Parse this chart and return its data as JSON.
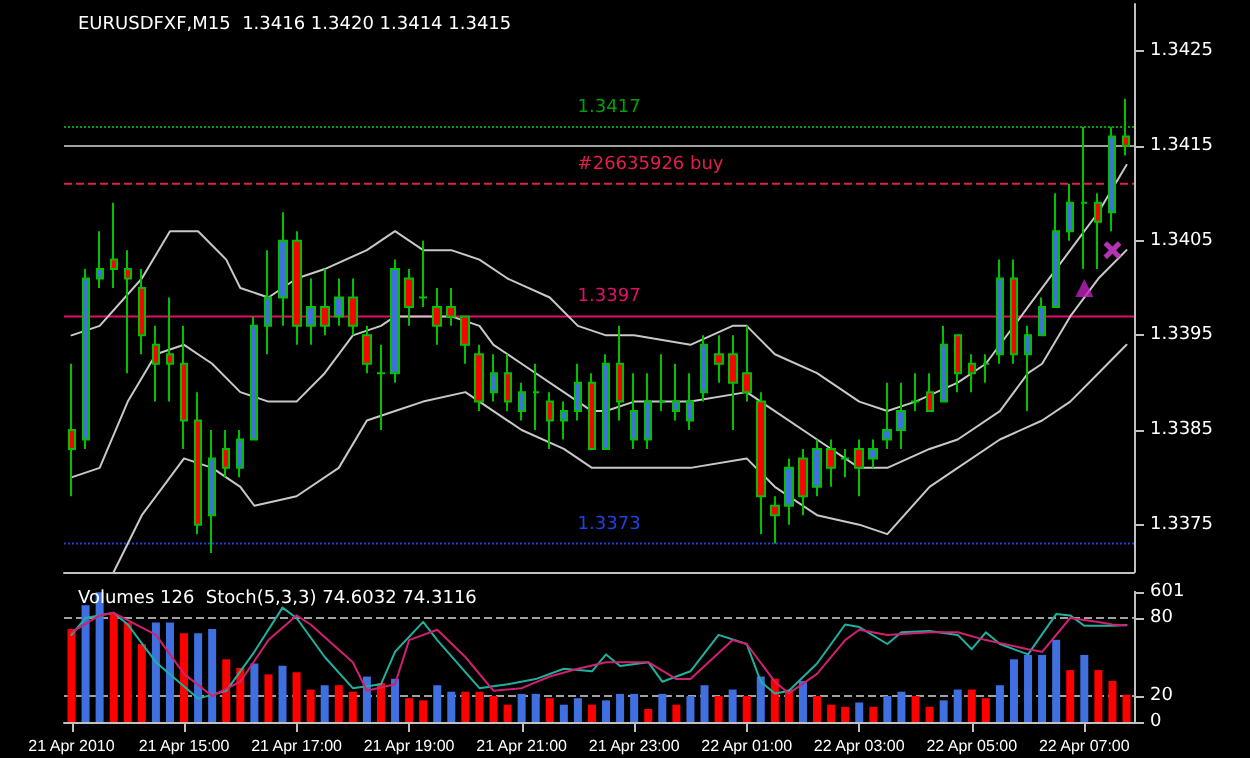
{
  "chart_data": [
    {
      "type": "candlestick",
      "title": "EURUSDFXF,M15  1.3416 1.3420 1.3414 1.3415",
      "color": "#00c000",
      "x": [
        "2010-04-21T13:00",
        "2010-04-21T13:15",
        "2010-04-21T13:30",
        "2010-04-21T13:45",
        "2010-04-21T14:00",
        "2010-04-21T14:15",
        "2010-04-21T14:30",
        "2010-04-21T14:45",
        "2010-04-21T15:00",
        "2010-04-21T15:15",
        "2010-04-21T15:30",
        "2010-04-21T15:45",
        "2010-04-21T16:00",
        "2010-04-21T16:15",
        "2010-04-21T16:30",
        "2010-04-21T16:45",
        "2010-04-21T17:00",
        "2010-04-21T17:15",
        "2010-04-21T17:30",
        "2010-04-21T17:45",
        "2010-04-21T18:00",
        "2010-04-21T18:15",
        "2010-04-21T18:30",
        "2010-04-21T18:45",
        "2010-04-21T19:00",
        "2010-04-21T19:15",
        "2010-04-21T19:30",
        "2010-04-21T19:45",
        "2010-04-21T20:00",
        "2010-04-21T20:15",
        "2010-04-21T20:30",
        "2010-04-21T20:45",
        "2010-04-21T21:00",
        "2010-04-21T21:15",
        "2010-04-21T21:30",
        "2010-04-21T21:45",
        "2010-04-21T22:00",
        "2010-04-21T22:15",
        "2010-04-21T22:30",
        "2010-04-21T22:45",
        "2010-04-21T23:00",
        "2010-04-21T23:15",
        "2010-04-21T23:30",
        "2010-04-21T23:45",
        "2010-04-22T00:00",
        "2010-04-22T00:15",
        "2010-04-22T00:30",
        "2010-04-22T00:45",
        "2010-04-22T01:00",
        "2010-04-22T01:15",
        "2010-04-22T01:30",
        "2010-04-22T01:45",
        "2010-04-22T02:00",
        "2010-04-22T02:15",
        "2010-04-22T02:30",
        "2010-04-22T02:45",
        "2010-04-22T03:00",
        "2010-04-22T03:15",
        "2010-04-22T03:30",
        "2010-04-22T03:45",
        "2010-04-22T04:00",
        "2010-04-22T04:15",
        "2010-04-22T04:30",
        "2010-04-22T04:45",
        "2010-04-22T05:00",
        "2010-04-22T05:15",
        "2010-04-22T05:30",
        "2010-04-22T05:45",
        "2010-04-22T06:00",
        "2010-04-22T06:15",
        "2010-04-22T06:30",
        "2010-04-22T06:45",
        "2010-04-22T07:00",
        "2010-04-22T07:15",
        "2010-04-22T07:30",
        "2010-04-22T07:45"
      ],
      "ohlc": [
        [
          1.3385,
          1.3392,
          1.3378,
          1.3383
        ],
        [
          1.3384,
          1.3402,
          1.3383,
          1.3401
        ],
        [
          1.3401,
          1.3406,
          1.34,
          1.3402
        ],
        [
          1.3403,
          1.3409,
          1.34,
          1.3402
        ],
        [
          1.3402,
          1.3404,
          1.3391,
          1.3401
        ],
        [
          1.34,
          1.3402,
          1.3393,
          1.3395
        ],
        [
          1.3394,
          1.3396,
          1.3388,
          1.3392
        ],
        [
          1.3393,
          1.3399,
          1.3388,
          1.3392
        ],
        [
          1.3392,
          1.3396,
          1.3383,
          1.3386
        ],
        [
          1.3386,
          1.3389,
          1.3374,
          1.3375
        ],
        [
          1.3376,
          1.3385,
          1.3372,
          1.3382
        ],
        [
          1.3383,
          1.3385,
          1.338,
          1.3381
        ],
        [
          1.3381,
          1.3385,
          1.338,
          1.3384
        ],
        [
          1.3384,
          1.3397,
          1.3384,
          1.3396
        ],
        [
          1.3396,
          1.3404,
          1.3393,
          1.3399
        ],
        [
          1.3399,
          1.3408,
          1.3396,
          1.3405
        ],
        [
          1.3405,
          1.3406,
          1.3394,
          1.3396
        ],
        [
          1.3396,
          1.3401,
          1.3394,
          1.3398
        ],
        [
          1.3398,
          1.3402,
          1.3395,
          1.3396
        ],
        [
          1.3397,
          1.3401,
          1.3396,
          1.3399
        ],
        [
          1.3399,
          1.3401,
          1.3395,
          1.3396
        ],
        [
          1.3395,
          1.3396,
          1.3391,
          1.3392
        ],
        [
          1.3391,
          1.3394,
          1.3385,
          1.3391
        ],
        [
          1.3391,
          1.3403,
          1.339,
          1.3402
        ],
        [
          1.3401,
          1.3402,
          1.3396,
          1.3398
        ],
        [
          1.3399,
          1.3405,
          1.3398,
          1.3399
        ],
        [
          1.3398,
          1.34,
          1.3394,
          1.3396
        ],
        [
          1.3398,
          1.34,
          1.3396,
          1.3397
        ],
        [
          1.3397,
          1.3397,
          1.3392,
          1.3394
        ],
        [
          1.3393,
          1.3394,
          1.3387,
          1.3388
        ],
        [
          1.3389,
          1.3393,
          1.3388,
          1.3391
        ],
        [
          1.3391,
          1.3393,
          1.3387,
          1.3388
        ],
        [
          1.3387,
          1.339,
          1.3386,
          1.3389
        ],
        [
          1.3389,
          1.3392,
          1.3385,
          1.3389
        ],
        [
          1.3388,
          1.3389,
          1.3383,
          1.3386
        ],
        [
          1.3386,
          1.3388,
          1.3384,
          1.3387
        ],
        [
          1.3387,
          1.3392,
          1.3386,
          1.339
        ],
        [
          1.339,
          1.3391,
          1.3383,
          1.3383
        ],
        [
          1.3383,
          1.3393,
          1.3383,
          1.3392
        ],
        [
          1.3392,
          1.3396,
          1.3386,
          1.3388
        ],
        [
          1.3384,
          1.3391,
          1.3383,
          1.3387
        ],
        [
          1.3384,
          1.3391,
          1.3383,
          1.3388
        ],
        [
          1.3388,
          1.3393,
          1.3387,
          1.3388
        ],
        [
          1.3387,
          1.3392,
          1.3386,
          1.3388
        ],
        [
          1.3386,
          1.3391,
          1.3385,
          1.3388
        ],
        [
          1.3389,
          1.3395,
          1.3388,
          1.3394
        ],
        [
          1.3393,
          1.3395,
          1.339,
          1.3392
        ],
        [
          1.3393,
          1.3395,
          1.3385,
          1.339
        ],
        [
          1.3391,
          1.3396,
          1.3388,
          1.3389
        ],
        [
          1.3388,
          1.3389,
          1.3374,
          1.3378
        ],
        [
          1.3377,
          1.3378,
          1.3373,
          1.3376
        ],
        [
          1.3377,
          1.3382,
          1.3375,
          1.3381
        ],
        [
          1.3382,
          1.3383,
          1.3376,
          1.3378
        ],
        [
          1.3379,
          1.3384,
          1.3378,
          1.3383
        ],
        [
          1.3383,
          1.3384,
          1.3379,
          1.3381
        ],
        [
          1.3382,
          1.3383,
          1.338,
          1.3382
        ],
        [
          1.3383,
          1.3384,
          1.3378,
          1.3381
        ],
        [
          1.3382,
          1.3384,
          1.3381,
          1.3383
        ],
        [
          1.3384,
          1.339,
          1.3383,
          1.3385
        ],
        [
          1.3385,
          1.339,
          1.3383,
          1.3387
        ],
        [
          1.3388,
          1.3391,
          1.3387,
          1.3388
        ],
        [
          1.3389,
          1.3391,
          1.3387,
          1.3387
        ],
        [
          1.3388,
          1.3396,
          1.3388,
          1.3394
        ],
        [
          1.3395,
          1.3395,
          1.3389,
          1.3391
        ],
        [
          1.3392,
          1.3393,
          1.3389,
          1.3391
        ],
        [
          1.3392,
          1.3393,
          1.339,
          1.3392
        ],
        [
          1.3393,
          1.3403,
          1.3392,
          1.3401
        ],
        [
          1.3401,
          1.3403,
          1.3392,
          1.3393
        ],
        [
          1.3393,
          1.3396,
          1.3387,
          1.3395
        ],
        [
          1.3395,
          1.3399,
          1.3395,
          1.3398
        ],
        [
          1.3398,
          1.341,
          1.3398,
          1.3406
        ],
        [
          1.3406,
          1.3411,
          1.3405,
          1.3409
        ],
        [
          1.3409,
          1.3417,
          1.3402,
          1.3409
        ],
        [
          1.3409,
          1.341,
          1.3402,
          1.3407
        ],
        [
          1.3408,
          1.3417,
          1.3406,
          1.3416
        ],
        [
          1.3416,
          1.342,
          1.3414,
          1.3415
        ]
      ],
      "colors": [
        "#ff0000",
        "#4070e0",
        "#4070e0",
        "#ff0000",
        "#ff0000",
        "#ff0000",
        "#ff0000",
        "#ff0000",
        "#ff0000",
        "#ff0000",
        "#4070e0",
        "#ff0000",
        "#4070e0",
        "#4070e0",
        "#4070e0",
        "#4070e0",
        "#ff0000",
        "#4070e0",
        "#ff0000",
        "#4070e0",
        "#ff0000",
        "#ff0000",
        "#00c000",
        "#4070e0",
        "#ff0000",
        "#00c000",
        "#ff0000",
        "#ff0000",
        "#ff0000",
        "#ff0000",
        "#4070e0",
        "#ff0000",
        "#4070e0",
        "#00c000",
        "#ff0000",
        "#4070e0",
        "#4070e0",
        "#ff0000",
        "#4070e0",
        "#ff0000",
        "#4070e0",
        "#4070e0",
        "#00c000",
        "#4070e0",
        "#4070e0",
        "#4070e0",
        "#ff0000",
        "#ff0000",
        "#ff0000",
        "#ff0000",
        "#ff0000",
        "#4070e0",
        "#ff0000",
        "#4070e0",
        "#ff0000",
        "#00c000",
        "#ff0000",
        "#4070e0",
        "#4070e0",
        "#4070e0",
        "#00c000",
        "#ff0000",
        "#4070e0",
        "#ff0000",
        "#ff0000",
        "#00c000",
        "#4070e0",
        "#ff0000",
        "#4070e0",
        "#4070e0",
        "#4070e0",
        "#4070e0",
        "#00c000",
        "#ff0000",
        "#4070e0",
        "#ff0000"
      ],
      "xlim": [
        "2010-04-21T12:52",
        "2010-04-22T07:53"
      ],
      "ylim": [
        1.337,
        1.343
      ],
      "yticks": [
        1.3375,
        1.3385,
        1.3395,
        1.3405,
        1.3415,
        1.3425
      ],
      "tick_labels": "y",
      "series": [
        {
          "type": "line",
          "color": "#c8c8c8",
          "x": [
            "2010-04-21T13:00",
            "2010-04-21T13:30",
            "2010-04-21T14:15",
            "2010-04-21T14:45",
            "2010-04-21T15:15",
            "2010-04-21T15:45",
            "2010-04-21T16:00",
            "2010-04-21T16:30",
            "2010-04-21T17:00",
            "2010-04-21T17:30",
            "2010-04-21T18:15",
            "2010-04-21T18:45",
            "2010-04-21T19:15",
            "2010-04-21T19:45",
            "2010-04-21T20:15",
            "2010-04-21T20:45",
            "2010-04-21T21:30",
            "2010-04-21T22:00",
            "2010-04-21T22:30",
            "2010-04-21T23:00",
            "2010-04-22T00:00",
            "2010-04-22T00:45",
            "2010-04-22T01:00",
            "2010-04-22T01:30",
            "2010-04-22T02:15",
            "2010-04-22T03:00",
            "2010-04-22T03:30",
            "2010-04-22T04:00",
            "2010-04-22T04:45",
            "2010-04-22T05:15",
            "2010-04-22T06:00",
            "2010-04-22T06:45",
            "2010-04-22T07:15",
            "2010-04-22T07:45"
          ],
          "values": [
            1.3395,
            1.3396,
            1.3401,
            1.3406,
            1.3406,
            1.3403,
            1.34,
            1.3399,
            1.3401,
            1.3402,
            1.3404,
            1.3406,
            1.3404,
            1.3404,
            1.3403,
            1.3401,
            1.3399,
            1.3396,
            1.3395,
            1.3395,
            1.3394,
            1.3396,
            1.3396,
            1.3393,
            1.3391,
            1.3388,
            1.3387,
            1.3388,
            1.339,
            1.3392,
            1.3398,
            1.3404,
            1.3408,
            1.3413
          ]
        },
        {
          "type": "line",
          "color": "#c8c8c8",
          "x": [
            "2010-04-21T13:00",
            "2010-04-21T13:30",
            "2010-04-21T14:00",
            "2010-04-21T14:30",
            "2010-04-21T15:00",
            "2010-04-21T15:30",
            "2010-04-21T16:00",
            "2010-04-21T16:30",
            "2010-04-21T17:00",
            "2010-04-21T17:30",
            "2010-04-21T18:00",
            "2010-04-21T18:30",
            "2010-04-21T18:45",
            "2010-04-21T19:15",
            "2010-04-21T19:45",
            "2010-04-21T20:15",
            "2010-04-21T20:30",
            "2010-04-21T21:00",
            "2010-04-21T21:45",
            "2010-04-21T22:15",
            "2010-04-21T22:30",
            "2010-04-21T23:00",
            "2010-04-22T00:00",
            "2010-04-22T01:00",
            "2010-04-22T01:30",
            "2010-04-22T02:15",
            "2010-04-22T03:00",
            "2010-04-22T03:30",
            "2010-04-22T04:15",
            "2010-04-22T04:45",
            "2010-04-22T05:30",
            "2010-04-22T06:00",
            "2010-04-22T06:15",
            "2010-04-22T06:45",
            "2010-04-22T07:15",
            "2010-04-22T07:45"
          ],
          "values": [
            1.338,
            1.3381,
            1.3388,
            1.3393,
            1.3394,
            1.3392,
            1.3389,
            1.3388,
            1.3388,
            1.3391,
            1.3395,
            1.3396,
            1.3397,
            1.3397,
            1.3397,
            1.3396,
            1.3394,
            1.3392,
            1.3389,
            1.3387,
            1.3387,
            1.3388,
            1.3388,
            1.3389,
            1.3387,
            1.3384,
            1.3381,
            1.3381,
            1.3383,
            1.3384,
            1.3387,
            1.3391,
            1.3392,
            1.3397,
            1.3401,
            1.3404
          ]
        },
        {
          "type": "line",
          "color": "#c8c8c8",
          "x": [
            "2010-04-21T13:45",
            "2010-04-21T14:15",
            "2010-04-21T14:45",
            "2010-04-21T15:00",
            "2010-04-21T15:30",
            "2010-04-21T16:00",
            "2010-04-21T16:15",
            "2010-04-21T17:00",
            "2010-04-21T17:45",
            "2010-04-21T18:15",
            "2010-04-21T18:45",
            "2010-04-21T19:15",
            "2010-04-21T20:00",
            "2010-04-21T20:30",
            "2010-04-21T21:00",
            "2010-04-21T21:45",
            "2010-04-21T22:15",
            "2010-04-21T22:30",
            "2010-04-21T23:00",
            "2010-04-22T00:00",
            "2010-04-22T01:00",
            "2010-04-22T01:30",
            "2010-04-22T02:15",
            "2010-04-22T03:00",
            "2010-04-22T03:30",
            "2010-04-22T04:15",
            "2010-04-22T04:45",
            "2010-04-22T05:30",
            "2010-04-22T06:15",
            "2010-04-22T06:45",
            "2010-04-22T07:15",
            "2010-04-22T07:45"
          ],
          "values": [
            1.337,
            1.3376,
            1.338,
            1.3382,
            1.3381,
            1.3379,
            1.3377,
            1.3378,
            1.3381,
            1.3386,
            1.3387,
            1.3388,
            1.3389,
            1.3387,
            1.3385,
            1.3383,
            1.3381,
            1.3381,
            1.3381,
            1.3381,
            1.3382,
            1.3379,
            1.3376,
            1.3375,
            1.3374,
            1.3379,
            1.3381,
            1.3384,
            1.3386,
            1.3388,
            1.3391,
            1.3394
          ]
        },
        {
          "type": "scatter",
          "marker": "triangle",
          "color": "#c020c0",
          "x": [
            "2010-04-22T07:00"
          ],
          "values": [
            1.34
          ]
        },
        {
          "type": "scatter",
          "marker": "cross",
          "color": "#e040e0",
          "x": [
            "2010-04-22T07:30"
          ],
          "values": [
            1.3404
          ]
        }
      ],
      "ref_lines": [
        {
          "axis": "y",
          "value": 1.3417,
          "label": "1.3417",
          "color": "#00a000",
          "line_style": "dotted"
        },
        {
          "axis": "y",
          "value": 1.3415,
          "color": "#a0a0a0",
          "line_style": "solid"
        },
        {
          "axis": "y",
          "value": 1.3411,
          "label": "#26635926 buy",
          "color": "#e0204a",
          "line_style": "dashed"
        },
        {
          "axis": "y",
          "value": 1.3397,
          "label": "1.3397",
          "color": "#e0106a",
          "line_style": "solid"
        },
        {
          "axis": "y",
          "value": 1.3373,
          "label": "1.3373",
          "color": "#2040e0",
          "line_style": "dotted"
        }
      ]
    },
    {
      "type": "bar",
      "title": "Volumes 126  Stoch(5,3,3) 74.6032 74.3116",
      "x": [
        "2010-04-21T13:00",
        "2010-04-21T13:15",
        "2010-04-21T13:30",
        "2010-04-21T13:45",
        "2010-04-21T14:00",
        "2010-04-21T14:15",
        "2010-04-21T14:30",
        "2010-04-21T14:45",
        "2010-04-21T15:00",
        "2010-04-21T15:15",
        "2010-04-21T15:30",
        "2010-04-21T15:45",
        "2010-04-21T16:00",
        "2010-04-21T16:15",
        "2010-04-21T16:30",
        "2010-04-21T16:45",
        "2010-04-21T17:00",
        "2010-04-21T17:15",
        "2010-04-21T17:30",
        "2010-04-21T17:45",
        "2010-04-21T18:00",
        "2010-04-21T18:15",
        "2010-04-21T18:30",
        "2010-04-21T18:45",
        "2010-04-21T19:00",
        "2010-04-21T19:15",
        "2010-04-21T19:30",
        "2010-04-21T19:45",
        "2010-04-21T20:00",
        "2010-04-21T20:15",
        "2010-04-21T20:30",
        "2010-04-21T20:45",
        "2010-04-21T21:00",
        "2010-04-21T21:15",
        "2010-04-21T21:30",
        "2010-04-21T21:45",
        "2010-04-21T22:00",
        "2010-04-21T22:15",
        "2010-04-21T22:30",
        "2010-04-21T22:45",
        "2010-04-21T23:00",
        "2010-04-21T23:15",
        "2010-04-21T23:30",
        "2010-04-21T23:45",
        "2010-04-22T00:00",
        "2010-04-22T00:15",
        "2010-04-22T00:30",
        "2010-04-22T00:45",
        "2010-04-22T01:00",
        "2010-04-22T01:15",
        "2010-04-22T01:30",
        "2010-04-22T01:45",
        "2010-04-22T02:00",
        "2010-04-22T02:15",
        "2010-04-22T02:30",
        "2010-04-22T02:45",
        "2010-04-22T03:00",
        "2010-04-22T03:15",
        "2010-04-22T03:30",
        "2010-04-22T03:45",
        "2010-04-22T04:00",
        "2010-04-22T04:15",
        "2010-04-22T04:30",
        "2010-04-22T04:45",
        "2010-04-22T05:00",
        "2010-04-22T05:15",
        "2010-04-22T05:30",
        "2010-04-22T05:45",
        "2010-04-22T06:00",
        "2010-04-22T06:15",
        "2010-04-22T06:30",
        "2010-04-22T06:45",
        "2010-04-22T07:00",
        "2010-04-22T07:15",
        "2010-04-22T07:30",
        "2010-04-22T07:45"
      ],
      "values": [
        430,
        540,
        600,
        500,
        460,
        360,
        460,
        460,
        410,
        410,
        430,
        290,
        250,
        270,
        220,
        260,
        230,
        150,
        170,
        170,
        140,
        210,
        180,
        200,
        110,
        100,
        170,
        140,
        140,
        140,
        120,
        80,
        130,
        130,
        110,
        80,
        110,
        80,
        100,
        130,
        130,
        60,
        130,
        80,
        120,
        170,
        120,
        150,
        120,
        210,
        200,
        150,
        190,
        120,
        80,
        70,
        90,
        70,
        120,
        140,
        120,
        70,
        100,
        150,
        150,
        110,
        170,
        290,
        310,
        310,
        380,
        240,
        310,
        240,
        190,
        126
      ],
      "colors": [
        "#ff0000",
        "#4070e0",
        "#4070e0",
        "#ff0000",
        "#ff0000",
        "#ff0000",
        "#4070e0",
        "#4070e0",
        "#ff0000",
        "#4070e0",
        "#4070e0",
        "#ff0000",
        "#ff0000",
        "#4070e0",
        "#ff0000",
        "#4070e0",
        "#ff0000",
        "#ff0000",
        "#4070e0",
        "#ff0000",
        "#ff0000",
        "#4070e0",
        "#ff0000",
        "#4070e0",
        "#ff0000",
        "#ff0000",
        "#4070e0",
        "#4070e0",
        "#ff0000",
        "#ff0000",
        "#ff0000",
        "#ff0000",
        "#4070e0",
        "#4070e0",
        "#ff0000",
        "#4070e0",
        "#4070e0",
        "#ff0000",
        "#4070e0",
        "#4070e0",
        "#4070e0",
        "#ff0000",
        "#4070e0",
        "#ff0000",
        "#4070e0",
        "#4070e0",
        "#ff0000",
        "#4070e0",
        "#ff0000",
        "#4070e0",
        "#ff0000",
        "#ff0000",
        "#4070e0",
        "#ff0000",
        "#ff0000",
        "#ff0000",
        "#4070e0",
        "#ff0000",
        "#4070e0",
        "#4070e0",
        "#ff0000",
        "#ff0000",
        "#4070e0",
        "#4070e0",
        "#ff0000",
        "#ff0000",
        "#4070e0",
        "#4070e0",
        "#4070e0",
        "#4070e0",
        "#4070e0",
        "#ff0000",
        "#4070e0",
        "#ff0000",
        "#ff0000",
        "#ff0000"
      ],
      "xlim": [
        "2010-04-21T12:52",
        "2010-04-22T07:53"
      ],
      "xticks": [
        {
          "value": "2010-04-21T13:00",
          "label": "21 Apr 2010"
        },
        {
          "value": "2010-04-21T15:00",
          "label": "21 Apr 15:00"
        },
        {
          "value": "2010-04-21T17:00",
          "label": "21 Apr 17:00"
        },
        {
          "value": "2010-04-21T19:00",
          "label": "21 Apr 19:00"
        },
        {
          "value": "2010-04-21T21:00",
          "label": "21 Apr 21:00"
        },
        {
          "value": "2010-04-21T23:00",
          "label": "21 Apr 23:00"
        },
        {
          "value": "2010-04-22T01:00",
          "label": "22 Apr 01:00"
        },
        {
          "value": "2010-04-22T03:00",
          "label": "22 Apr 03:00"
        },
        {
          "value": "2010-04-22T05:00",
          "label": "22 Apr 05:00"
        },
        {
          "value": "2010-04-22T07:00",
          "label": "22 Apr 07:00"
        }
      ],
      "ylim": [
        0,
        601
      ],
      "yticks": [
        0,
        601
      ],
      "y2lim": [
        0,
        100
      ],
      "y2ticks": [
        20,
        80
      ],
      "series": [
        {
          "type": "line",
          "axis": "y2",
          "color": "#20b0a0",
          "x": [
            "2010-04-21T13:00",
            "2010-04-21T13:15",
            "2010-04-21T13:45",
            "2010-04-21T14:00",
            "2010-04-21T14:30",
            "2010-04-21T15:15",
            "2010-04-21T15:45",
            "2010-04-21T16:15",
            "2010-04-21T16:45",
            "2010-04-21T17:00",
            "2010-04-21T17:30",
            "2010-04-21T18:00",
            "2010-04-21T18:30",
            "2010-04-21T18:45",
            "2010-04-21T19:15",
            "2010-04-21T19:30",
            "2010-04-21T20:15",
            "2010-04-21T20:45",
            "2010-04-21T21:15",
            "2010-04-21T21:45",
            "2010-04-21T22:15",
            "2010-04-21T22:30",
            "2010-04-21T22:45",
            "2010-04-21T23:15",
            "2010-04-21T23:30",
            "2010-04-22T00:00",
            "2010-04-22T00:30",
            "2010-04-22T01:00",
            "2010-04-22T01:15",
            "2010-04-22T01:30",
            "2010-04-22T01:45",
            "2010-04-22T02:15",
            "2010-04-22T02:45",
            "2010-04-22T03:00",
            "2010-04-22T03:30",
            "2010-04-22T03:45",
            "2010-04-22T04:15",
            "2010-04-22T04:45",
            "2010-04-22T05:00",
            "2010-04-22T05:15",
            "2010-04-22T05:30",
            "2010-04-22T06:00",
            "2010-04-22T06:30",
            "2010-04-22T06:45",
            "2010-04-22T07:00",
            "2010-04-22T07:30",
            "2010-04-22T07:45"
          ],
          "values": [
            67,
            80,
            84,
            75,
            46,
            18,
            24,
            54,
            88,
            80,
            50,
            26,
            29,
            54,
            77,
            63,
            26,
            29,
            33,
            41,
            39,
            52,
            43,
            46,
            31,
            39,
            67,
            60,
            31,
            22,
            24,
            45,
            75,
            73,
            60,
            69,
            70,
            67,
            56,
            69,
            60,
            52,
            83,
            82,
            74,
            74,
            74.6
          ]
        },
        {
          "type": "line",
          "axis": "y2",
          "color": "#d02070",
          "x": [
            "2010-04-21T13:00",
            "2010-04-21T13:30",
            "2010-04-21T13:45",
            "2010-04-21T14:30",
            "2010-04-21T15:00",
            "2010-04-21T15:30",
            "2010-04-21T16:00",
            "2010-04-21T16:30",
            "2010-04-21T17:00",
            "2010-04-21T17:15",
            "2010-04-21T18:00",
            "2010-04-21T18:15",
            "2010-04-21T18:45",
            "2010-04-21T19:00",
            "2010-04-21T19:30",
            "2010-04-21T20:00",
            "2010-04-21T20:30",
            "2010-04-21T21:00",
            "2010-04-21T21:30",
            "2010-04-21T22:00",
            "2010-04-21T22:30",
            "2010-04-21T23:15",
            "2010-04-21T23:45",
            "2010-04-22T00:00",
            "2010-04-22T00:45",
            "2010-04-22T01:00",
            "2010-04-22T01:30",
            "2010-04-22T01:45",
            "2010-04-22T02:15",
            "2010-04-22T02:45",
            "2010-04-22T03:00",
            "2010-04-22T03:30",
            "2010-04-22T04:15",
            "2010-04-22T04:45",
            "2010-04-22T05:15",
            "2010-04-22T06:00",
            "2010-04-22T06:15",
            "2010-04-22T06:45",
            "2010-04-22T07:15",
            "2010-04-22T07:30",
            "2010-04-22T07:45"
          ],
          "values": [
            69,
            82,
            84,
            67,
            37,
            20,
            31,
            63,
            82,
            75,
            46,
            24,
            29,
            63,
            71,
            50,
            24,
            26,
            35,
            41,
            46,
            46,
            33,
            33,
            63,
            60,
            31,
            22,
            37,
            63,
            71,
            67,
            69,
            69,
            63,
            56,
            54,
            80,
            77,
            75,
            74.3
          ]
        }
      ],
      "ref_lines": [
        {
          "axis": "y2",
          "value": 80,
          "color": "#a0a0a0",
          "line_style": "dashed"
        },
        {
          "axis": "y2",
          "value": 20,
          "color": "#a0a0a0",
          "line_style": "dashed"
        }
      ]
    }
  ]
}
